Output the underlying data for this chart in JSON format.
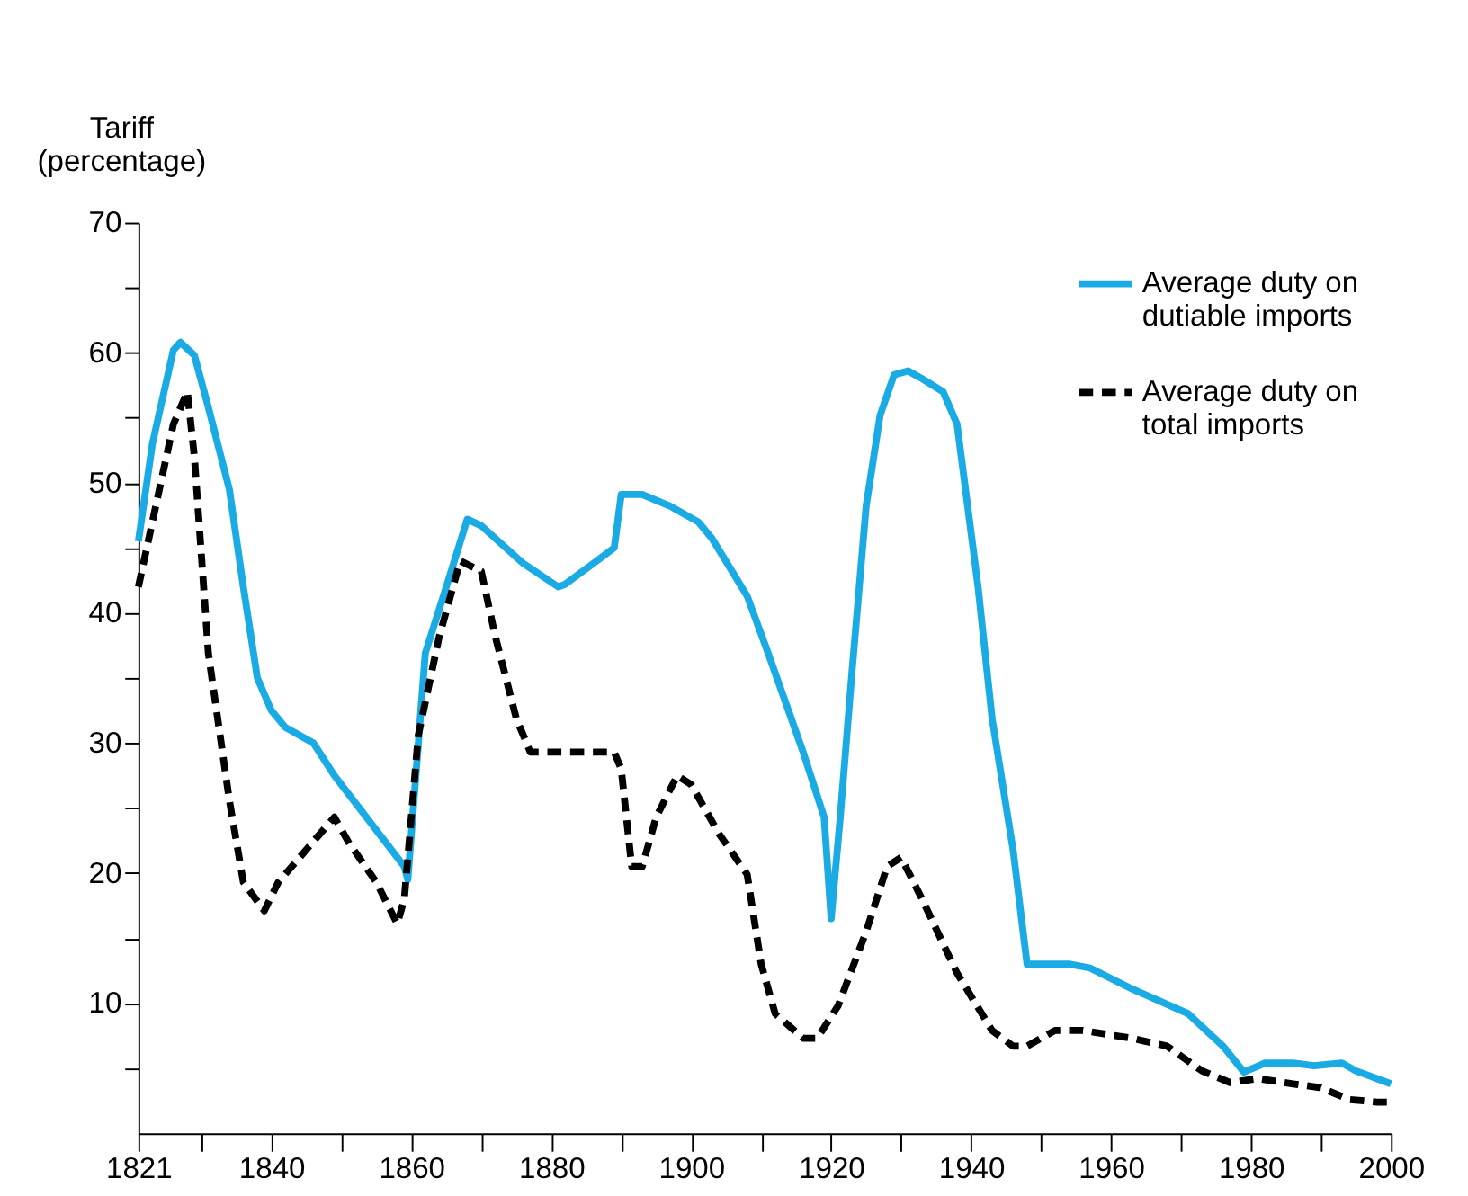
{
  "chart_data": {
    "type": "line",
    "ylabel": "Tariff (percentage)",
    "xlim": [
      1821,
      2000
    ],
    "ylim": [
      0,
      70
    ],
    "xticks": [
      {
        "value": 1821,
        "label": "1821"
      },
      {
        "value": 1830,
        "label": null
      },
      1840,
      {
        "value": 1850,
        "label": null
      },
      1860,
      {
        "value": 1870,
        "label": null
      },
      1880,
      {
        "value": 1890,
        "label": null
      },
      1900,
      {
        "value": 1910,
        "label": null
      },
      1920,
      {
        "value": 1930,
        "label": null
      },
      1940,
      {
        "value": 1950,
        "label": null
      },
      1960,
      {
        "value": 1970,
        "label": null
      },
      1980,
      {
        "value": 1990,
        "label": null
      },
      2000
    ],
    "yticks": [
      {
        "value": 5,
        "label": null
      },
      10,
      {
        "value": 15,
        "label": null
      },
      20,
      {
        "value": 25,
        "label": null
      },
      30,
      {
        "value": 35,
        "label": null
      },
      40,
      {
        "value": 45,
        "label": null
      },
      50,
      {
        "value": 55,
        "label": null
      },
      60,
      {
        "value": 65,
        "label": null
      },
      70
    ],
    "grid": false,
    "legend": "top right",
    "marker": "none",
    "series": [
      {
        "name": "Average duty on dutiable imports",
        "color": "#1aabe4",
        "line_style": "solid",
        "x": [
          1821,
          1823,
          1826,
          1827,
          1829,
          1831,
          1834,
          1836,
          1838,
          1840,
          1842,
          1846,
          1849,
          1859,
          1859.5,
          1862,
          1865,
          1868,
          1870,
          1876,
          1881,
          1882,
          1887,
          1889,
          1890,
          1893,
          1897,
          1901,
          1903,
          1908,
          1911,
          1916,
          1919,
          1920,
          1921.3,
          1923,
          1925,
          1927,
          1929,
          1931,
          1933,
          1936,
          1938,
          1941,
          1943,
          1946,
          1948,
          1951,
          1954,
          1957,
          1963,
          1971,
          1976,
          1979,
          1982,
          1986,
          1989,
          1993,
          1995,
          1998,
          2000
        ],
        "values": [
          45.5,
          53,
          60.2,
          60.8,
          59.8,
          55.8,
          49.5,
          42,
          35,
          32.5,
          31.2,
          30,
          27.5,
          20.5,
          19.5,
          36.9,
          42,
          47.2,
          46.7,
          43.8,
          42,
          42.2,
          44.2,
          45,
          49.1,
          49.1,
          48.2,
          47,
          45.7,
          41.3,
          36.9,
          29.3,
          24.3,
          16.5,
          24.3,
          35.6,
          48.2,
          55.2,
          58.3,
          58.6,
          58,
          57,
          54.5,
          42,
          31.9,
          21.8,
          13,
          13,
          13,
          12.7,
          11.1,
          9.2,
          6.7,
          4.7,
          5.4,
          5.4,
          5.2,
          5.4,
          4.8,
          4.2,
          3.8
        ]
      },
      {
        "name": "Average duty on total imports",
        "color": "#000000",
        "line_style": "dashed",
        "x": [
          1821,
          1823,
          1826,
          1828,
          1829,
          1831,
          1834,
          1836,
          1839,
          1841,
          1849,
          1851,
          1855,
          1858,
          1859,
          1861,
          1864,
          1867,
          1870,
          1872,
          1875,
          1877,
          1884,
          1889,
          1890,
          1891.5,
          1893,
          1895,
          1898,
          1900,
          1904,
          1908,
          1910,
          1912,
          1916,
          1918,
          1921,
          1925,
          1928,
          1930,
          1933,
          1938,
          1943,
          1946,
          1948,
          1952,
          1956,
          1963,
          1968,
          1973,
          1977,
          1981,
          1986,
          1990,
          1994,
          1998,
          2000
        ],
        "values": [
          42,
          47,
          54.5,
          57,
          52,
          36.9,
          25.6,
          19.3,
          17.1,
          19.3,
          24.3,
          22.4,
          19.3,
          16.1,
          18,
          30.6,
          38.2,
          44,
          43.2,
          38.2,
          31.9,
          29.3,
          29.3,
          29.3,
          28,
          20.5,
          20.5,
          24.3,
          27.5,
          26.8,
          23,
          19.9,
          13,
          9.2,
          7.3,
          7.3,
          9.8,
          15.5,
          20.5,
          21.2,
          18,
          12.3,
          7.9,
          6.7,
          6.7,
          7.9,
          7.9,
          7.3,
          6.7,
          4.8,
          3.9,
          4.2,
          3.8,
          3.5,
          2.6,
          2.4,
          2.4
        ]
      }
    ]
  }
}
